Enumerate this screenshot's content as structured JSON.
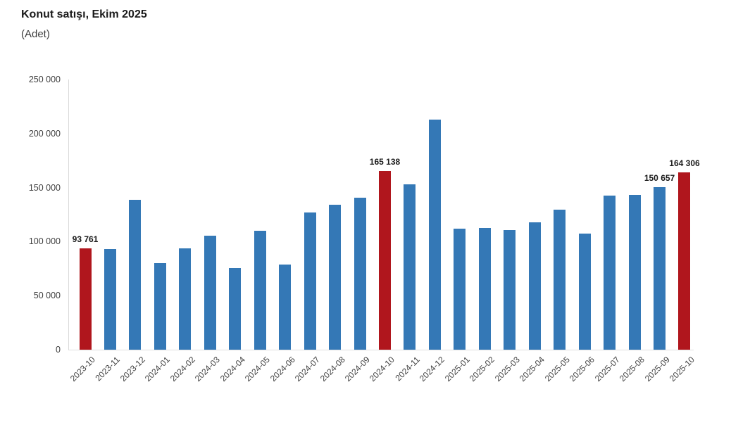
{
  "page": {
    "title": "Konut satışı, Ekim 2025",
    "subtitle": "(Adet)"
  },
  "chart_data": {
    "type": "bar",
    "title": "Konut satışı, Ekim 2025",
    "subtitle_unit": "(Adet)",
    "categories": [
      "2023-10",
      "2023-11",
      "2023-12",
      "2024-01",
      "2024-02",
      "2024-03",
      "2024-04",
      "2024-05",
      "2024-06",
      "2024-07",
      "2024-08",
      "2024-09",
      "2024-10",
      "2024-11",
      "2024-12",
      "2025-01",
      "2025-02",
      "2025-03",
      "2025-04",
      "2025-05",
      "2025-06",
      "2025-07",
      "2025-08",
      "2025-09",
      "2025-10"
    ],
    "values": [
      93761,
      93200,
      138500,
      80000,
      93900,
      105400,
      75400,
      110300,
      79000,
      127000,
      133800,
      140900,
      165138,
      152800,
      212600,
      111900,
      112500,
      110400,
      118100,
      129700,
      107400,
      142400,
      143100,
      150657,
      164306
    ],
    "highlight_indices": [
      0,
      12,
      24
    ],
    "data_labels": [
      {
        "index": 0,
        "text": "93 761"
      },
      {
        "index": 12,
        "text": "165 138"
      },
      {
        "index": 23,
        "text": "150 657"
      },
      {
        "index": 24,
        "text": "164 306"
      }
    ],
    "yticks": [
      0,
      50000,
      100000,
      150000,
      200000,
      250000
    ],
    "ytick_labels": [
      "0",
      "50 000",
      "100 000",
      "150 000",
      "200 000",
      "250 000"
    ],
    "ylim": [
      0,
      250000
    ],
    "xlabel": "",
    "ylabel": "",
    "x_tick_rotation": -45,
    "grid": false,
    "legend_position": "none",
    "colors": {
      "bar": "#3478B6",
      "highlight": "#B0161D",
      "axis": "#D9D9D9",
      "title_text": "#1A1A1A",
      "tick_text": "#404040",
      "value_label_text": "#1A1A1A"
    }
  }
}
